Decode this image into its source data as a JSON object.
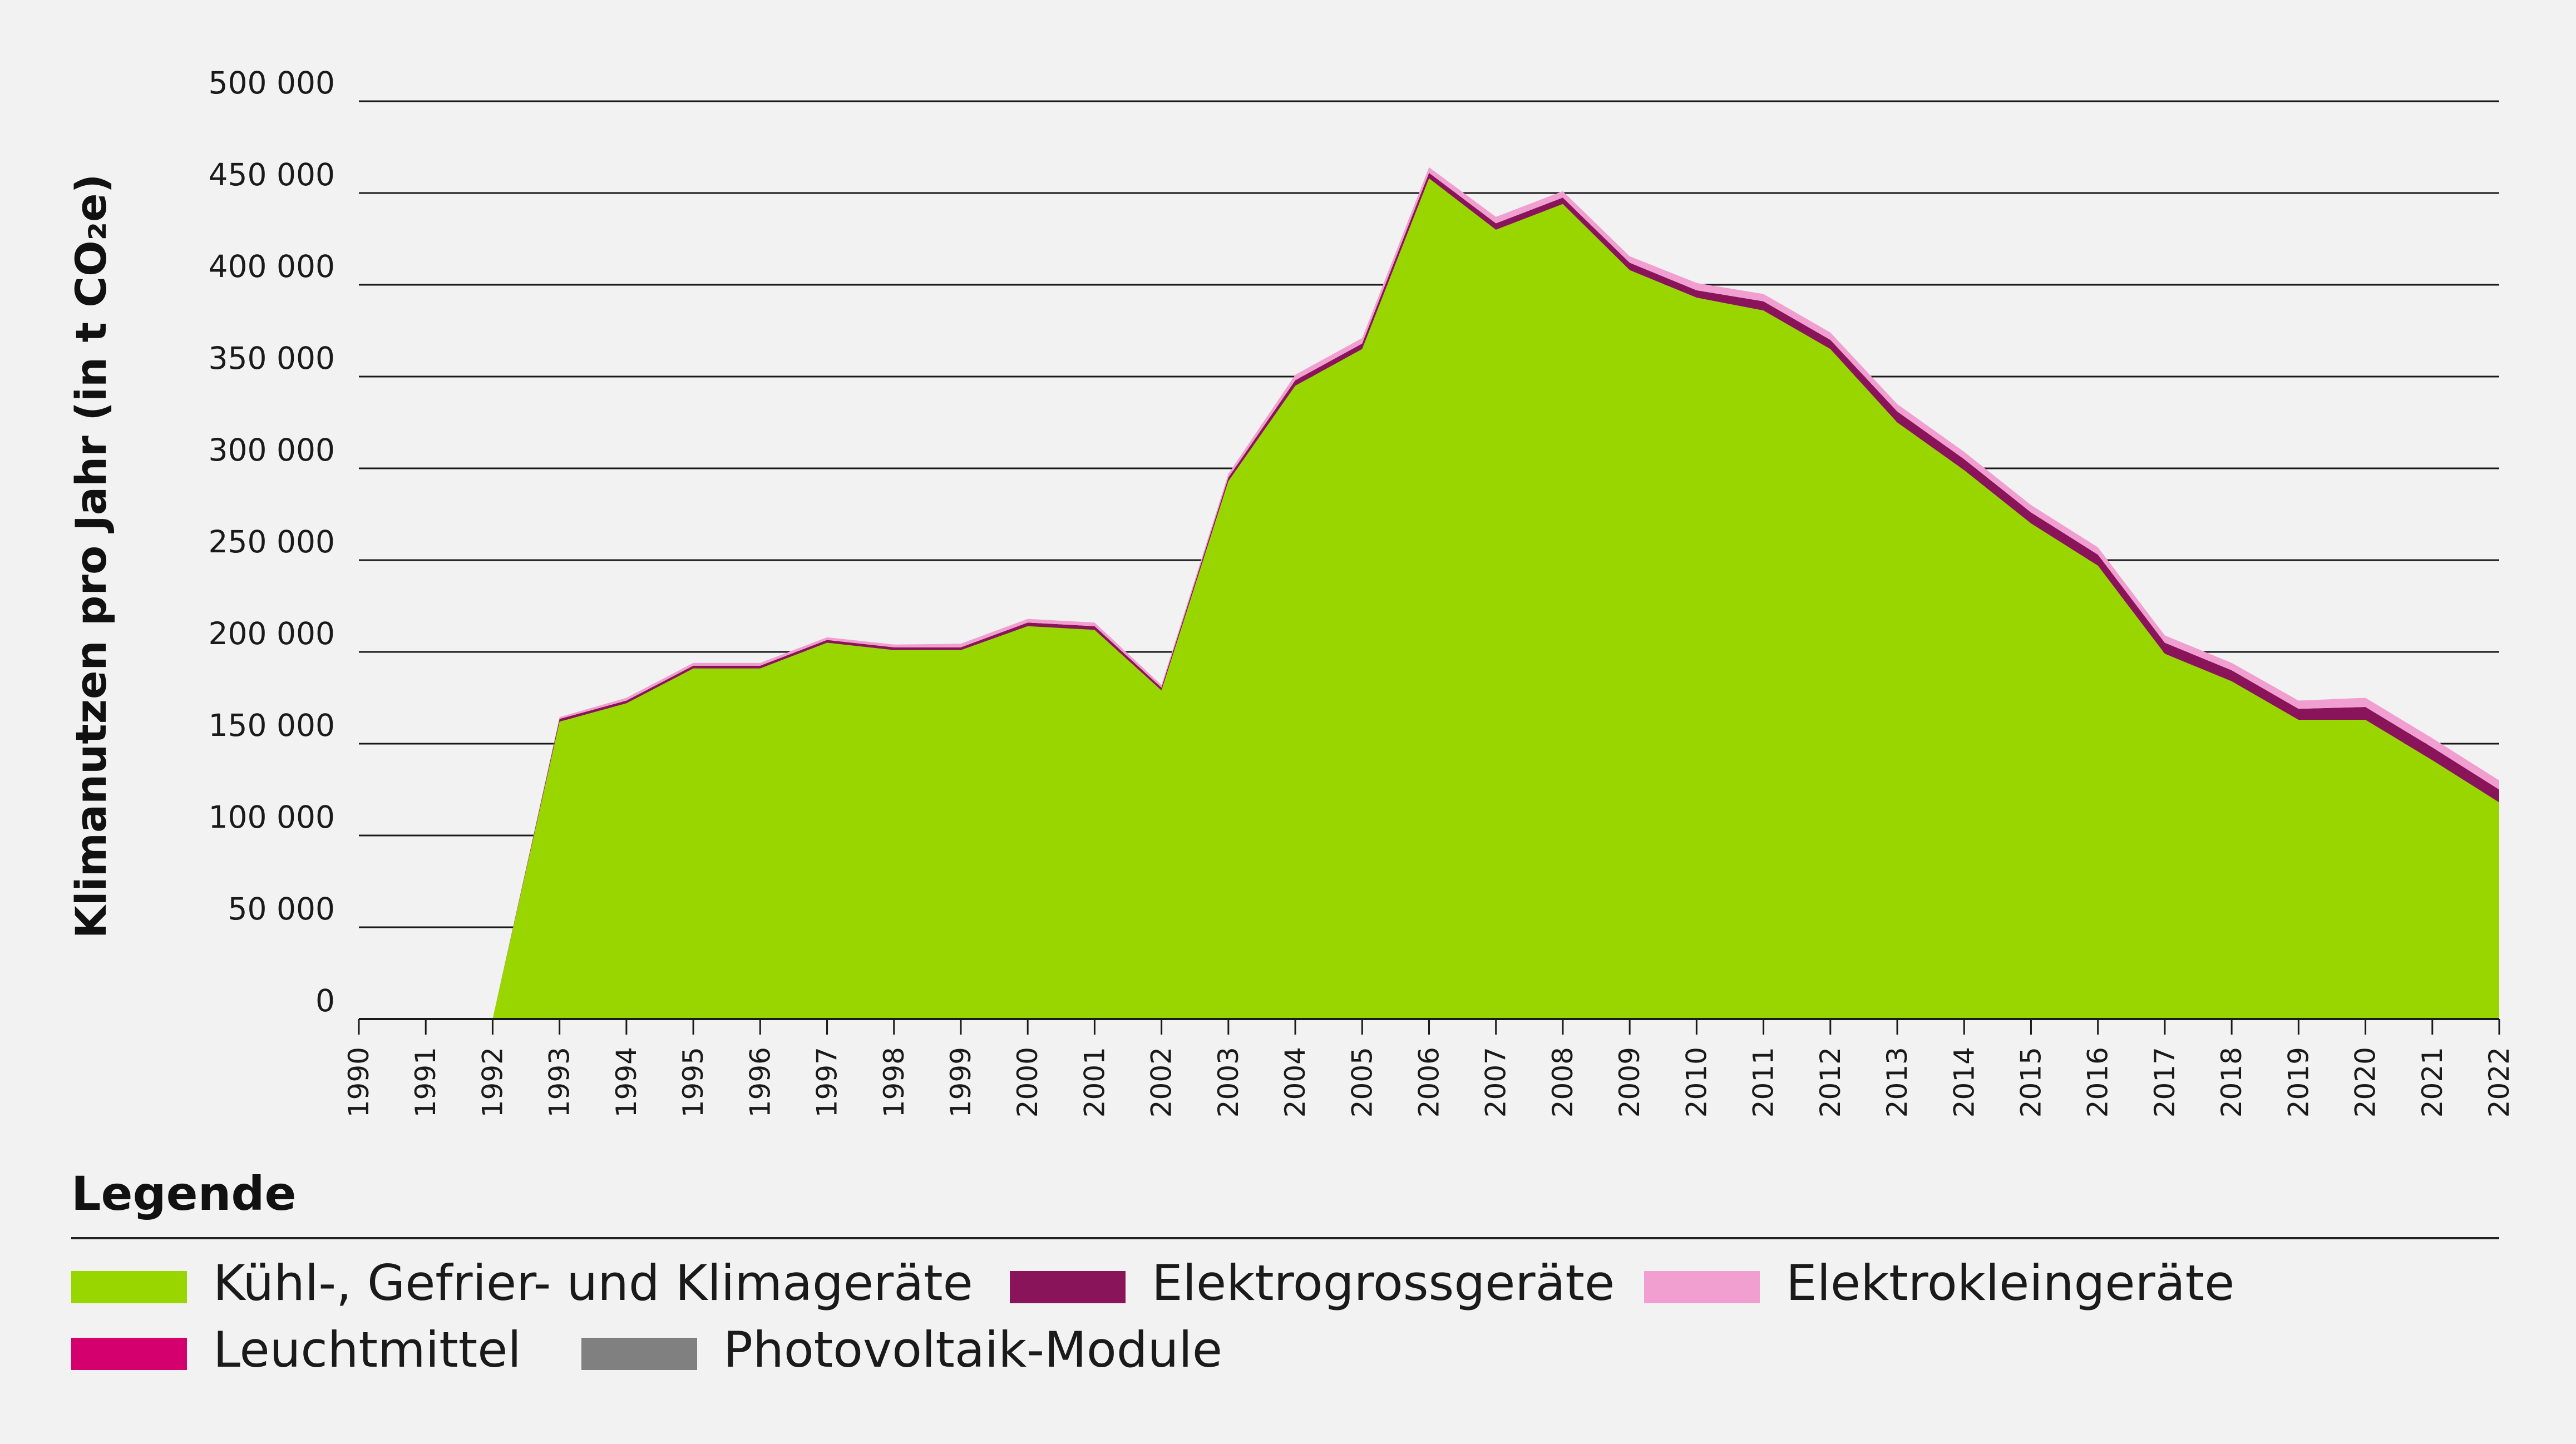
{
  "chart_data": {
    "type": "area",
    "stacked": true,
    "ylabel": "Klimanutzen pro Jahr (in t CO₂e)",
    "ylim": [
      0,
      500000
    ],
    "yticks": [
      0,
      50000,
      100000,
      150000,
      200000,
      250000,
      300000,
      350000,
      400000,
      450000,
      500000
    ],
    "ytick_labels": [
      "0",
      "50 000",
      "100 000",
      "150 000",
      "200 000",
      "250 000",
      "300 000",
      "350 000",
      "400 000",
      "450 000",
      "500 000"
    ],
    "x": [
      "1990",
      "1991",
      "1992",
      "1993",
      "1994",
      "1995",
      "1996",
      "1997",
      "1998",
      "1999",
      "2000",
      "2001",
      "2002",
      "2003",
      "2004",
      "2005",
      "2006",
      "2007",
      "2008",
      "2009",
      "2010",
      "2011",
      "2012",
      "2013",
      "2014",
      "2015",
      "2016",
      "2017",
      "2018",
      "2019",
      "2020",
      "2021",
      "2022"
    ],
    "grid": true,
    "legend_title": "Legende",
    "legend_position": "bottom",
    "series": [
      {
        "name": "Kühl-, Gefrier- und Klimageräte",
        "color": "#99d600",
        "values": [
          0,
          0,
          0,
          162000,
          172000,
          191000,
          191000,
          205000,
          201000,
          201000,
          214000,
          212000,
          179000,
          293000,
          345000,
          365000,
          458000,
          430000,
          444000,
          408000,
          393000,
          386000,
          365000,
          325000,
          299000,
          270000,
          247000,
          199000,
          184000,
          163000,
          163000,
          141000,
          118000
        ]
      },
      {
        "name": "Elektrogrossgeräte",
        "color": "#8a1459",
        "values": [
          0,
          0,
          0,
          1500,
          1500,
          1500,
          1500,
          1500,
          1500,
          1500,
          2000,
          2000,
          1500,
          2000,
          3000,
          3000,
          3000,
          3500,
          3500,
          4000,
          4000,
          5000,
          5000,
          6000,
          6000,
          6000,
          6000,
          6000,
          6000,
          6000,
          7000,
          7000,
          7000
        ]
      },
      {
        "name": "Elektrokleingeräte",
        "color": "#f09fd0",
        "values": [
          0,
          0,
          0,
          1000,
          1500,
          1500,
          1500,
          1500,
          1500,
          2000,
          2000,
          2000,
          1500,
          2000,
          3000,
          3000,
          3000,
          3500,
          3500,
          3500,
          4000,
          4000,
          4000,
          4000,
          4000,
          4000,
          4000,
          4000,
          4000,
          4500,
          5000,
          5000,
          5000
        ]
      },
      {
        "name": "Leuchtmittel",
        "color": "#d4006e",
        "values": [
          0,
          0,
          0,
          0,
          0,
          0,
          0,
          0,
          0,
          0,
          0,
          0,
          0,
          0,
          0,
          0,
          0,
          0,
          0,
          0,
          0,
          0,
          0,
          0,
          0,
          0,
          0,
          0,
          0,
          0,
          0,
          0,
          0
        ]
      },
      {
        "name": "Photovoltaik-Module",
        "color": "#808080",
        "values": [
          0,
          0,
          0,
          0,
          0,
          0,
          0,
          0,
          0,
          0,
          0,
          0,
          0,
          0,
          0,
          0,
          0,
          0,
          0,
          0,
          0,
          0,
          0,
          0,
          0,
          0,
          0,
          0,
          0,
          0,
          0,
          0,
          0
        ]
      }
    ]
  }
}
